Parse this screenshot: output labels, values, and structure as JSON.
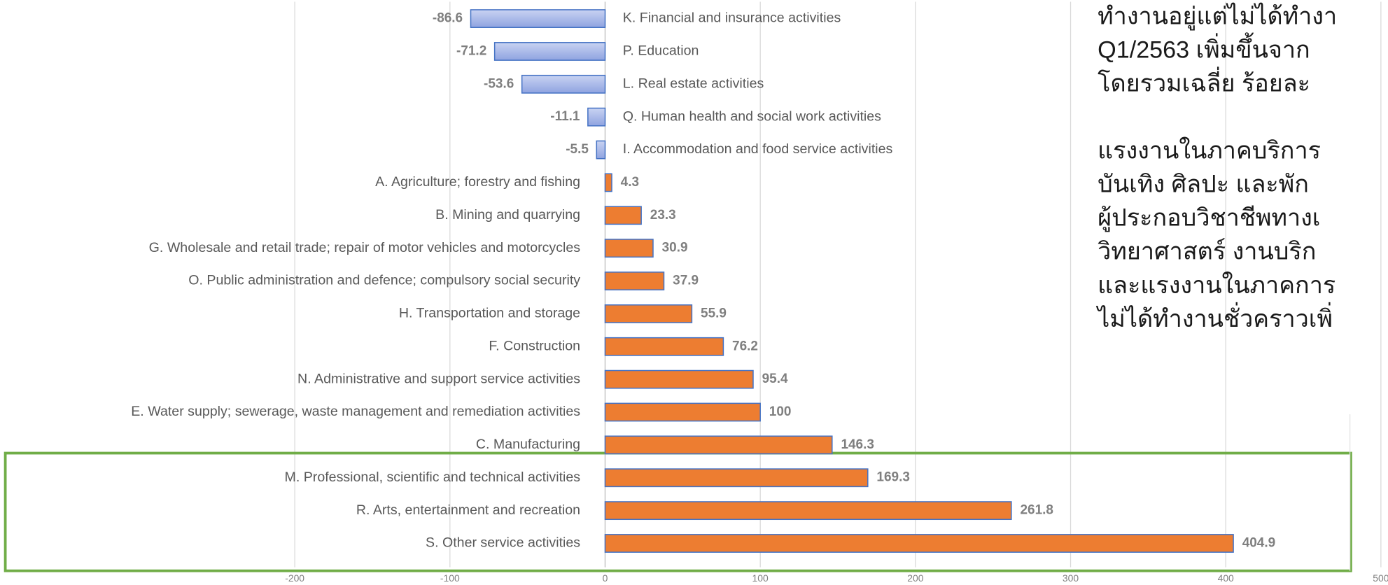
{
  "chart_data": {
    "type": "hbar",
    "categories": [
      "K. Financial and insurance activities",
      "P. Education",
      "L. Real estate activities",
      "Q. Human health and social work activities",
      "I. Accommodation and food service activities",
      "A. Agriculture; forestry and fishing",
      "B. Mining and quarrying",
      "G. Wholesale and retail trade; repair of motor vehicles and motorcycles",
      "O. Public administration and defence; compulsory social security",
      "H. Transportation and storage",
      "F. Construction",
      "N. Administrative and support service activities",
      "E. Water supply; sewerage, waste management and remediation activities",
      "C. Manufacturing",
      "M. Professional, scientific and technical activities",
      "R. Arts, entertainment and recreation",
      "S. Other service activities"
    ],
    "values": [
      -86.6,
      -71.2,
      -53.6,
      -11.1,
      -5.5,
      4.3,
      23.3,
      30.9,
      37.9,
      55.9,
      76.2,
      95.4,
      100,
      146.3,
      169.3,
      261.8,
      404.9
    ],
    "color": "#ed7d31",
    "negative_color": "#a4b4e6",
    "border_color": "#4472c4",
    "xlim": [
      -200,
      500
    ],
    "xticks": [
      -200,
      -100,
      0,
      100,
      200,
      300,
      400,
      500
    ],
    "grid": true
  },
  "text_panel": {
    "lines": [
      "ทำงานอยู่แต่ไม่ได้ทำงา",
      "Q1/2563 เพิ่มขึ้นจาก",
      "โดยรวมเฉลี่ย ร้อยละ",
      "แรงงานในภาคบริการ",
      "บันเทิง ศิลปะ และพัก",
      "ผู้ประกอบวิชาชีพทางเ",
      "วิทยาศาสตร์ งานบริก",
      "และแรงงานในภาคการ",
      "ไม่ได้ทำงานชั่วคราวเพิ่"
    ]
  }
}
